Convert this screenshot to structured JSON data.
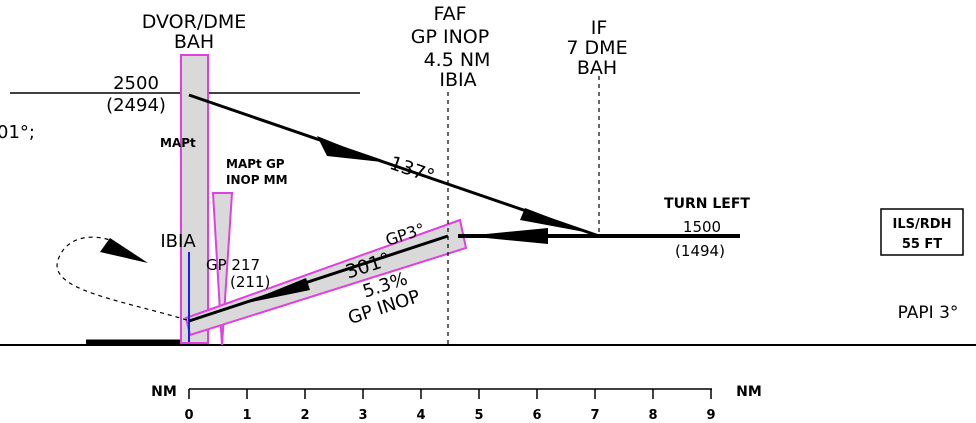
{
  "labels": {
    "dvor_title": "DVOR/DME",
    "dvor_ident": "BAH",
    "alt_2500": "2500",
    "alt_2494": "(2494)",
    "left_partial": "01°;",
    "mapt_1": "MAPt",
    "mapt_gp_1": "MAPt  GP",
    "mapt_gp_2": "INOP  MM",
    "ibia": "IBIA",
    "gp_217": "GP  217",
    "gp_211": "(211)",
    "faf_1": "FAF",
    "faf_2": "GP  INOP",
    "faf_3": "4.5  NM",
    "faf_4": "IBIA",
    "if_1": "IF",
    "if_2": "7  DME",
    "if_3": "BAH",
    "course_137": "137°",
    "gp3": "GP3°",
    "course_301": "301°",
    "gradient": "5.3%",
    "gp_inop": "GP  INOP",
    "turn_left": "TURN LEFT",
    "alt_1500": "1500",
    "alt_1494": "(1494)",
    "ils_rdh_1": "ILS/RDH",
    "ils_rdh_2": "55 FT",
    "papi": "PAPI 3°",
    "nm_left": "NM",
    "nm_right": "NM"
  },
  "scale_ticks": [
    "0",
    "1",
    "2",
    "3",
    "4",
    "5",
    "6",
    "7",
    "8",
    "9"
  ],
  "colors": {
    "magenta": "#e040e0",
    "gray_fill": "#d9d9d9",
    "blue": "#1a1aff"
  }
}
